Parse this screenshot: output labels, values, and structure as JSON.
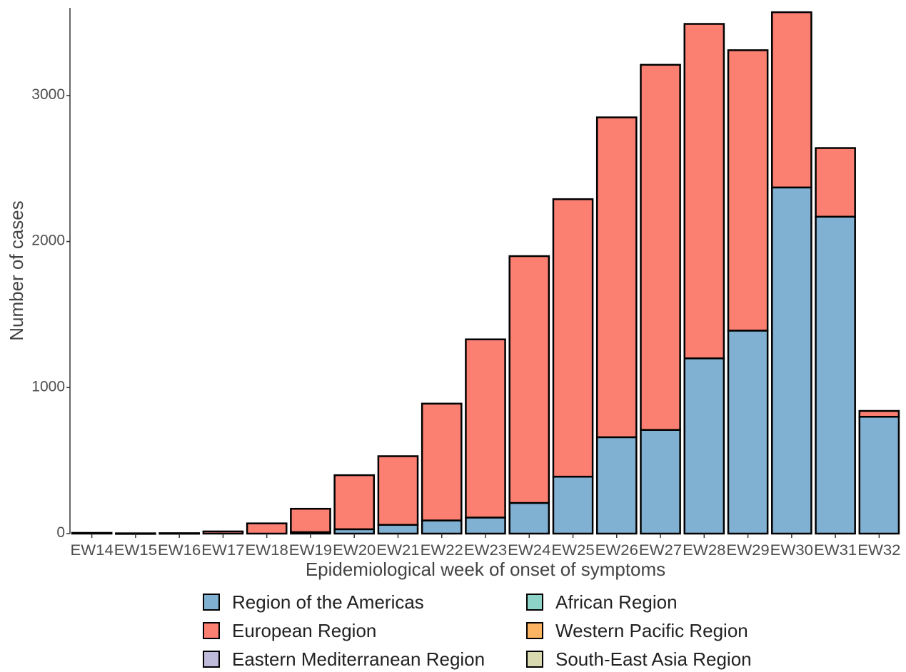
{
  "chart_data": {
    "type": "bar",
    "stacked": true,
    "title": "",
    "xlabel": "Epidemiological week of onset of symptoms",
    "ylabel": "Number of cases",
    "ylim": [
      0,
      3600
    ],
    "yticks": [
      0,
      1000,
      2000,
      3000
    ],
    "grid": false,
    "legend_position": "bottom",
    "categories": [
      "EW14",
      "EW15",
      "EW16",
      "EW17",
      "EW18",
      "EW19",
      "EW20",
      "EW21",
      "EW22",
      "EW23",
      "EW24",
      "EW25",
      "EW26",
      "EW27",
      "EW28",
      "EW29",
      "EW30",
      "EW31",
      "EW32"
    ],
    "series": [
      {
        "name": "Region of the Americas",
        "color": "#80B1D3",
        "values": [
          0,
          0,
          0,
          0,
          0,
          10,
          30,
          60,
          90,
          110,
          210,
          390,
          660,
          710,
          1200,
          1390,
          2370,
          2170,
          800
        ]
      },
      {
        "name": "European Region",
        "color": "#FB8072",
        "values": [
          5,
          2,
          3,
          15,
          70,
          160,
          370,
          470,
          800,
          1220,
          1690,
          1900,
          2190,
          2500,
          2290,
          1920,
          1200,
          470,
          40
        ]
      },
      {
        "name": "Eastern Mediterranean Region",
        "color": "#BEBADA",
        "values": [
          0,
          0,
          0,
          0,
          0,
          0,
          0,
          0,
          0,
          0,
          0,
          0,
          0,
          0,
          0,
          0,
          0,
          0,
          0
        ]
      },
      {
        "name": "African Region",
        "color": "#8DD3C7",
        "values": [
          0,
          0,
          0,
          0,
          0,
          0,
          0,
          0,
          0,
          0,
          0,
          0,
          0,
          0,
          0,
          0,
          0,
          0,
          0
        ]
      },
      {
        "name": "Western Pacific Region",
        "color": "#FDB462",
        "values": [
          0,
          0,
          0,
          0,
          0,
          0,
          0,
          0,
          0,
          0,
          0,
          0,
          0,
          0,
          0,
          0,
          0,
          0,
          0
        ]
      },
      {
        "name": "South-East Asia Region",
        "color": "#D9D9B0",
        "values": [
          0,
          0,
          0,
          0,
          0,
          0,
          0,
          0,
          0,
          0,
          0,
          0,
          0,
          0,
          0,
          0,
          0,
          0,
          0
        ]
      }
    ]
  },
  "legend_order": [
    "Region of the Americas",
    "European Region",
    "Eastern Mediterranean Region",
    "African Region",
    "Western Pacific Region",
    "South-East Asia Region"
  ]
}
